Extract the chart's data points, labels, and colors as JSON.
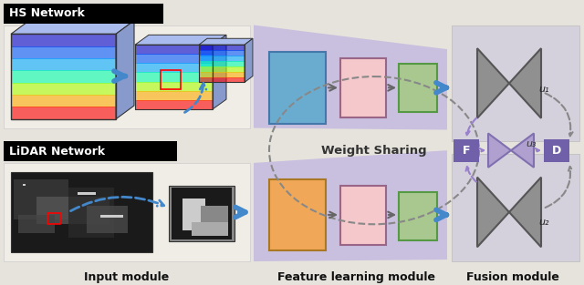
{
  "bg_color": "#e5e3dc",
  "fig_width": 6.4,
  "fig_height": 3.13,
  "hs_label": "HS Network",
  "lidar_label": "LiDAR Network",
  "input_module_label": "Input module",
  "feature_module_label": "Feature learning module",
  "fusion_module_label": "Fusion module",
  "weight_sharing_label": "Weight Sharing",
  "box1_color": "#6aaccf",
  "box2_color": "#f5c8cc",
  "box3_color": "#a8c890",
  "box_orange": "#f0a858",
  "arrow_blue": "#4488cc",
  "arrow_gray": "#666666",
  "purple": "#9980cc",
  "purple_dark": "#7060aa",
  "fusion_bg": "#d4d0dc",
  "trap_color": "#c0b4e0",
  "input_bg": "#f0ede6",
  "u1": "u₁",
  "u2": "u₂",
  "u3": "u₃",
  "F_label": "F",
  "D_label": "D"
}
